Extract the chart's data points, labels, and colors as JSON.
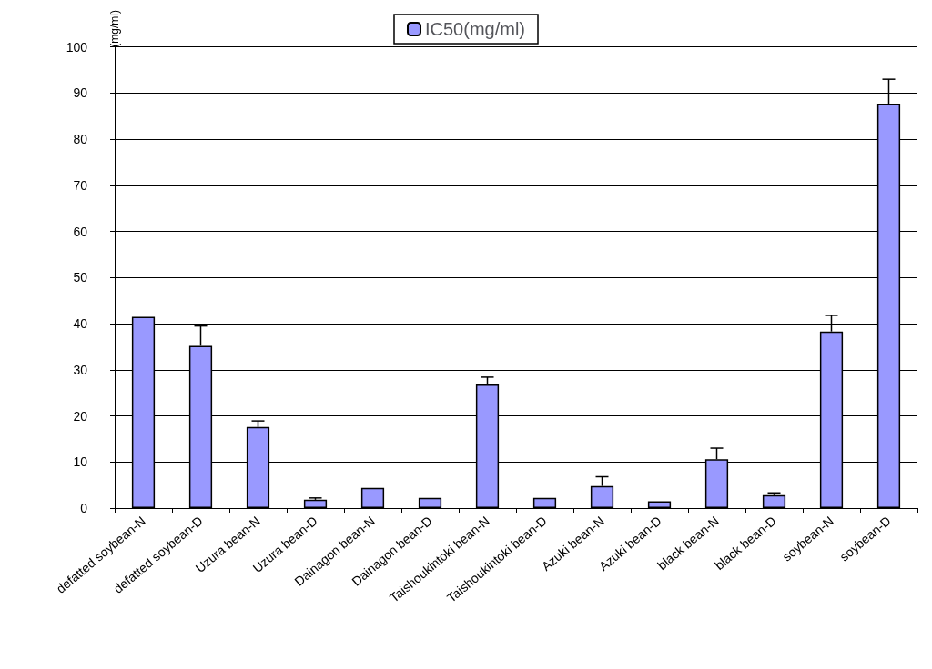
{
  "chart_data": {
    "type": "bar",
    "ylabel": "(mg/ml)",
    "categories": [
      "defatted soybean-N",
      "defatted soybean-D",
      "Uzura bean-N",
      "Uzura bean-D",
      "Dainagon bean-N",
      "Dainagon bean-D",
      "Taishoukintoki bean-N",
      "Taishoukintoki bean-D",
      "Azuki bean-N",
      "Azuki bean-D",
      "black bean-N",
      "black bean-D",
      "soybean-N",
      "soybean-D"
    ],
    "series": [
      {
        "name": "IC50(mg/ml)",
        "color": "#9999ff",
        "values": [
          41.5,
          35.2,
          17.6,
          1.8,
          4.4,
          2.2,
          26.8,
          2.2,
          4.8,
          1.5,
          10.6,
          2.8,
          38.3,
          87.7
        ],
        "errors": [
          null,
          [
            35.2,
            39.5
          ],
          [
            17.6,
            18.9
          ],
          [
            1.8,
            2.2
          ],
          null,
          null,
          [
            26.8,
            28.4
          ],
          null,
          [
            4.8,
            6.8
          ],
          null,
          [
            10.6,
            13.0
          ],
          [
            2.8,
            3.3
          ],
          [
            38.3,
            41.8
          ],
          [
            87.7,
            93.0
          ]
        ]
      }
    ],
    "ylim": [
      0,
      100
    ],
    "yticks": [
      0,
      10,
      20,
      30,
      40,
      50,
      60,
      70,
      80,
      90,
      100
    ],
    "grid": "y",
    "legend": "top"
  }
}
